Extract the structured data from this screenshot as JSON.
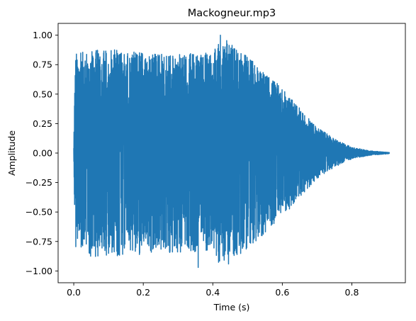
{
  "chart_data": {
    "type": "line",
    "title": "Mackogneur.mp3",
    "xlabel": "Time (s)",
    "ylabel": "Amplitude",
    "xlim": [
      -0.045,
      0.954
    ],
    "ylim": [
      -1.1,
      1.1
    ],
    "xticks": [
      0.0,
      0.2,
      0.4,
      0.6,
      0.8
    ],
    "xtick_labels": [
      "0.0",
      "0.2",
      "0.4",
      "0.6",
      "0.8"
    ],
    "yticks": [
      -1.0,
      -0.75,
      -0.5,
      -0.25,
      0.0,
      0.25,
      0.5,
      0.75,
      1.0
    ],
    "ytick_labels": [
      "−1.00",
      "−0.75",
      "−0.50",
      "−0.25",
      "0.00",
      "0.25",
      "0.50",
      "0.75",
      "1.00"
    ],
    "grid": false,
    "legend": "none",
    "series": [
      {
        "color": "#1f77b4",
        "duration_s": 0.908,
        "peak_max": 1.0,
        "peak_min": -0.97,
        "envelope": {
          "t": [
            0.0,
            0.003,
            0.006,
            0.02,
            0.05,
            0.1,
            0.2,
            0.3,
            0.4,
            0.42,
            0.5,
            0.6,
            0.65,
            0.7,
            0.75,
            0.8,
            0.85,
            0.908
          ],
          "amp": [
            0.05,
            0.6,
            0.85,
            0.85,
            0.88,
            0.88,
            0.86,
            0.84,
            0.86,
            1.0,
            0.82,
            0.55,
            0.38,
            0.22,
            0.12,
            0.05,
            0.02,
            0.005
          ]
        }
      }
    ]
  }
}
